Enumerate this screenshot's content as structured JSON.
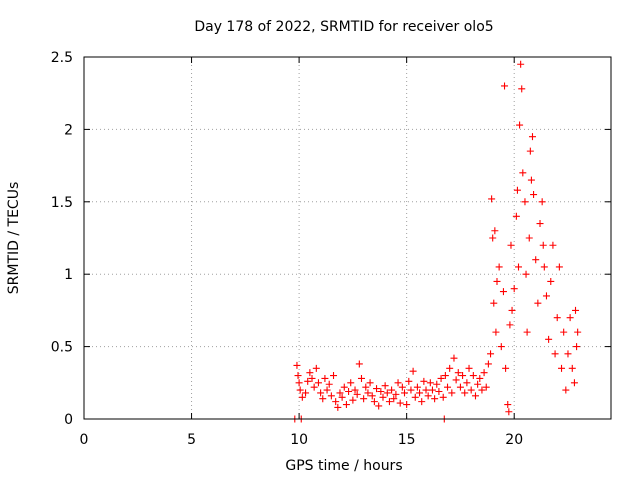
{
  "chart_data": {
    "type": "scatter",
    "title": "Day 178 of 2022, SRMTID for receiver olo5",
    "xlabel": "GPS time / hours",
    "ylabel": "SRMTID / TECUs",
    "xlim": [
      0,
      24.5
    ],
    "ylim": [
      0,
      2.5
    ],
    "xticks": [
      0,
      5,
      10,
      15,
      20
    ],
    "xtick_labels": [
      "0",
      "5",
      "10",
      "15",
      "20"
    ],
    "yticks": [
      0,
      0.5,
      1,
      1.5,
      2,
      2.5
    ],
    "ytick_labels": [
      "0",
      "0.5",
      "1",
      "1.5",
      "2",
      "2.5"
    ],
    "grid": true,
    "marker": "plus",
    "series": [
      {
        "name": "SRMTID",
        "color": "#ff0000",
        "points": [
          [
            9.8,
            0.0
          ],
          [
            9.9,
            0.37
          ],
          [
            9.95,
            0.3
          ],
          [
            10.0,
            0.25
          ],
          [
            10.05,
            0.2
          ],
          [
            10.1,
            0.0
          ],
          [
            10.15,
            0.15
          ],
          [
            10.3,
            0.18
          ],
          [
            10.4,
            0.26
          ],
          [
            10.5,
            0.32
          ],
          [
            10.6,
            0.28
          ],
          [
            10.7,
            0.22
          ],
          [
            10.8,
            0.35
          ],
          [
            10.9,
            0.25
          ],
          [
            11.0,
            0.18
          ],
          [
            11.1,
            0.14
          ],
          [
            11.2,
            0.28
          ],
          [
            11.3,
            0.2
          ],
          [
            11.4,
            0.24
          ],
          [
            11.5,
            0.16
          ],
          [
            11.6,
            0.3
          ],
          [
            11.7,
            0.12
          ],
          [
            11.8,
            0.08
          ],
          [
            11.9,
            0.18
          ],
          [
            12.0,
            0.15
          ],
          [
            12.1,
            0.22
          ],
          [
            12.2,
            0.1
          ],
          [
            12.3,
            0.19
          ],
          [
            12.4,
            0.25
          ],
          [
            12.5,
            0.13
          ],
          [
            12.6,
            0.2
          ],
          [
            12.7,
            0.17
          ],
          [
            12.8,
            0.38
          ],
          [
            12.9,
            0.28
          ],
          [
            13.0,
            0.14
          ],
          [
            13.1,
            0.22
          ],
          [
            13.2,
            0.18
          ],
          [
            13.3,
            0.25
          ],
          [
            13.4,
            0.16
          ],
          [
            13.5,
            0.12
          ],
          [
            13.6,
            0.21
          ],
          [
            13.7,
            0.09
          ],
          [
            13.8,
            0.19
          ],
          [
            13.9,
            0.15
          ],
          [
            14.0,
            0.23
          ],
          [
            14.1,
            0.18
          ],
          [
            14.2,
            0.12
          ],
          [
            14.3,
            0.2
          ],
          [
            14.4,
            0.14
          ],
          [
            14.5,
            0.17
          ],
          [
            14.6,
            0.25
          ],
          [
            14.7,
            0.11
          ],
          [
            14.8,
            0.22
          ],
          [
            14.9,
            0.18
          ],
          [
            15.0,
            0.1
          ],
          [
            15.1,
            0.26
          ],
          [
            15.2,
            0.2
          ],
          [
            15.3,
            0.33
          ],
          [
            15.4,
            0.15
          ],
          [
            15.5,
            0.22
          ],
          [
            15.6,
            0.18
          ],
          [
            15.7,
            0.12
          ],
          [
            15.8,
            0.26
          ],
          [
            15.9,
            0.2
          ],
          [
            16.0,
            0.16
          ],
          [
            16.1,
            0.25
          ],
          [
            16.2,
            0.2
          ],
          [
            16.3,
            0.14
          ],
          [
            16.4,
            0.24
          ],
          [
            16.5,
            0.19
          ],
          [
            16.6,
            0.28
          ],
          [
            16.7,
            0.15
          ],
          [
            16.75,
            0.0
          ],
          [
            16.8,
            0.3
          ],
          [
            16.9,
            0.22
          ],
          [
            17.0,
            0.35
          ],
          [
            17.1,
            0.18
          ],
          [
            17.2,
            0.42
          ],
          [
            17.3,
            0.27
          ],
          [
            17.4,
            0.32
          ],
          [
            17.5,
            0.22
          ],
          [
            17.6,
            0.3
          ],
          [
            17.7,
            0.18
          ],
          [
            17.8,
            0.25
          ],
          [
            17.9,
            0.35
          ],
          [
            18.0,
            0.2
          ],
          [
            18.1,
            0.3
          ],
          [
            18.2,
            0.16
          ],
          [
            18.3,
            0.24
          ],
          [
            18.4,
            0.28
          ],
          [
            18.5,
            0.2
          ],
          [
            18.6,
            0.32
          ],
          [
            18.7,
            0.22
          ],
          [
            18.8,
            0.38
          ],
          [
            18.9,
            0.45
          ],
          [
            18.95,
            1.52
          ],
          [
            19.0,
            1.25
          ],
          [
            19.05,
            0.8
          ],
          [
            19.1,
            1.3
          ],
          [
            19.15,
            0.6
          ],
          [
            19.2,
            0.95
          ],
          [
            19.3,
            1.05
          ],
          [
            19.4,
            0.5
          ],
          [
            19.5,
            0.88
          ],
          [
            19.55,
            2.3
          ],
          [
            19.6,
            0.35
          ],
          [
            19.7,
            0.1
          ],
          [
            19.75,
            0.05
          ],
          [
            19.8,
            0.65
          ],
          [
            19.85,
            1.2
          ],
          [
            19.9,
            0.75
          ],
          [
            20.0,
            0.9
          ],
          [
            20.1,
            1.4
          ],
          [
            20.15,
            1.58
          ],
          [
            20.2,
            1.05
          ],
          [
            20.25,
            2.03
          ],
          [
            20.3,
            2.45
          ],
          [
            20.35,
            2.28
          ],
          [
            20.4,
            1.7
          ],
          [
            20.5,
            1.5
          ],
          [
            20.55,
            1.0
          ],
          [
            20.6,
            0.6
          ],
          [
            20.7,
            1.25
          ],
          [
            20.75,
            1.85
          ],
          [
            20.8,
            1.65
          ],
          [
            20.85,
            1.95
          ],
          [
            20.9,
            1.55
          ],
          [
            21.0,
            1.1
          ],
          [
            21.1,
            0.8
          ],
          [
            21.2,
            1.35
          ],
          [
            21.3,
            1.5
          ],
          [
            21.35,
            1.2
          ],
          [
            21.4,
            1.05
          ],
          [
            21.5,
            0.85
          ],
          [
            21.6,
            0.55
          ],
          [
            21.7,
            0.95
          ],
          [
            21.8,
            1.2
          ],
          [
            21.9,
            0.45
          ],
          [
            22.0,
            0.7
          ],
          [
            22.1,
            1.05
          ],
          [
            22.2,
            0.35
          ],
          [
            22.3,
            0.6
          ],
          [
            22.4,
            0.2
          ],
          [
            22.5,
            0.45
          ],
          [
            22.6,
            0.7
          ],
          [
            22.7,
            0.35
          ],
          [
            22.8,
            0.25
          ],
          [
            22.85,
            0.75
          ],
          [
            22.9,
            0.5
          ],
          [
            22.95,
            0.6
          ]
        ]
      }
    ]
  }
}
